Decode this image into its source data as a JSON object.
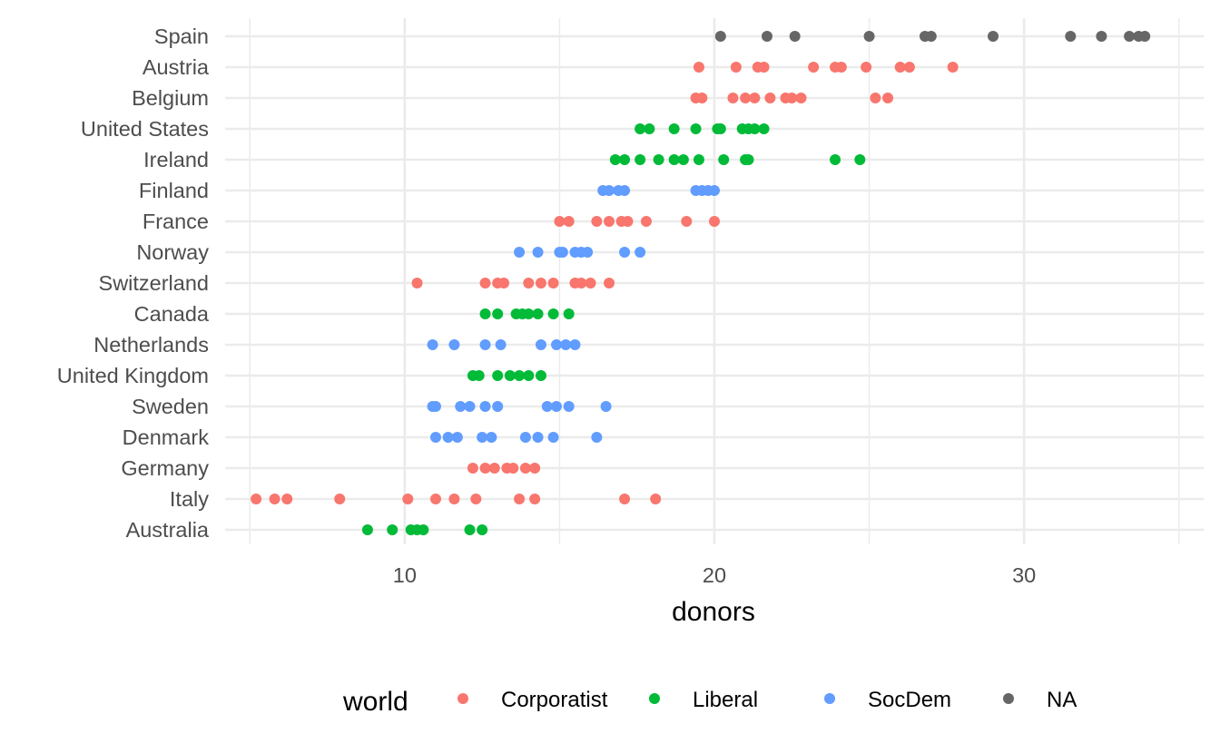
{
  "chart_data": {
    "type": "scatter",
    "xlabel": "donors",
    "ylabel": "",
    "xlim": [
      4.2,
      35.8
    ],
    "x_ticks": [
      10,
      20,
      30
    ],
    "grid": true,
    "legend": {
      "title": "world",
      "position": "bottom",
      "entries": [
        {
          "label": "Corporatist",
          "color": "#F8766D"
        },
        {
          "label": "Liberal",
          "color": "#00BA38"
        },
        {
          "label": "SocDem",
          "color": "#619CFF"
        },
        {
          "label": "NA",
          "color": "#666666"
        }
      ]
    },
    "categories": [
      "Spain",
      "Austria",
      "Belgium",
      "United States",
      "Ireland",
      "Finland",
      "France",
      "Norway",
      "Switzerland",
      "Canada",
      "Netherlands",
      "United Kingdom",
      "Sweden",
      "Denmark",
      "Germany",
      "Italy",
      "Australia"
    ],
    "series": [
      {
        "country": "Spain",
        "world": "NA",
        "values": [
          20.2,
          21.7,
          22.6,
          25.0,
          26.8,
          27.0,
          29.0,
          31.5,
          32.5,
          33.4,
          33.7,
          33.9
        ]
      },
      {
        "country": "Austria",
        "world": "Corporatist",
        "values": [
          19.5,
          20.7,
          21.4,
          21.6,
          23.2,
          23.9,
          24.1,
          24.9,
          26.0,
          26.3,
          27.7
        ]
      },
      {
        "country": "Belgium",
        "world": "Corporatist",
        "values": [
          19.4,
          19.6,
          20.6,
          21.0,
          21.3,
          21.8,
          22.3,
          22.5,
          22.8,
          25.2,
          25.6
        ]
      },
      {
        "country": "United States",
        "world": "Liberal",
        "values": [
          17.6,
          17.9,
          18.7,
          19.4,
          20.1,
          20.2,
          20.9,
          21.1,
          21.3,
          21.6
        ]
      },
      {
        "country": "Ireland",
        "world": "Liberal",
        "values": [
          16.8,
          17.1,
          17.6,
          18.2,
          18.7,
          19.0,
          19.5,
          20.3,
          21.0,
          21.1,
          23.9,
          24.7
        ]
      },
      {
        "country": "Finland",
        "world": "SocDem",
        "values": [
          16.4,
          16.6,
          16.9,
          17.1,
          19.4,
          19.6,
          19.8,
          20.0
        ]
      },
      {
        "country": "France",
        "world": "Corporatist",
        "values": [
          15.0,
          15.3,
          16.2,
          16.6,
          17.0,
          17.2,
          17.8,
          19.1,
          20.0
        ]
      },
      {
        "country": "Norway",
        "world": "SocDem",
        "values": [
          13.7,
          14.3,
          15.0,
          15.1,
          15.5,
          15.7,
          15.9,
          17.1,
          17.6
        ]
      },
      {
        "country": "Switzerland",
        "world": "Corporatist",
        "values": [
          10.4,
          12.6,
          13.0,
          13.2,
          14.0,
          14.4,
          14.8,
          15.5,
          15.7,
          16.0,
          16.6
        ]
      },
      {
        "country": "Canada",
        "world": "Liberal",
        "values": [
          12.6,
          13.0,
          13.6,
          13.8,
          14.0,
          14.3,
          14.8,
          15.3
        ]
      },
      {
        "country": "Netherlands",
        "world": "SocDem",
        "values": [
          10.9,
          11.6,
          12.6,
          13.1,
          14.4,
          14.9,
          15.2,
          15.5
        ]
      },
      {
        "country": "United Kingdom",
        "world": "Liberal",
        "values": [
          12.2,
          12.4,
          13.0,
          13.4,
          13.7,
          14.0,
          14.4
        ]
      },
      {
        "country": "Sweden",
        "world": "SocDem",
        "values": [
          10.9,
          11.0,
          11.8,
          12.1,
          12.6,
          13.0,
          14.6,
          14.9,
          15.3,
          16.5
        ]
      },
      {
        "country": "Denmark",
        "world": "SocDem",
        "values": [
          11.0,
          11.4,
          11.7,
          12.5,
          12.8,
          13.9,
          14.3,
          14.8,
          16.2
        ]
      },
      {
        "country": "Germany",
        "world": "Corporatist",
        "values": [
          12.2,
          12.6,
          12.9,
          13.3,
          13.5,
          13.9,
          14.2
        ]
      },
      {
        "country": "Italy",
        "world": "Corporatist",
        "values": [
          5.2,
          5.8,
          6.2,
          7.9,
          10.1,
          11.0,
          11.6,
          12.3,
          13.7,
          14.2,
          17.1,
          18.1
        ]
      },
      {
        "country": "Australia",
        "world": "Liberal",
        "values": [
          8.8,
          9.6,
          10.2,
          10.4,
          10.6,
          12.1,
          12.5
        ]
      }
    ]
  }
}
